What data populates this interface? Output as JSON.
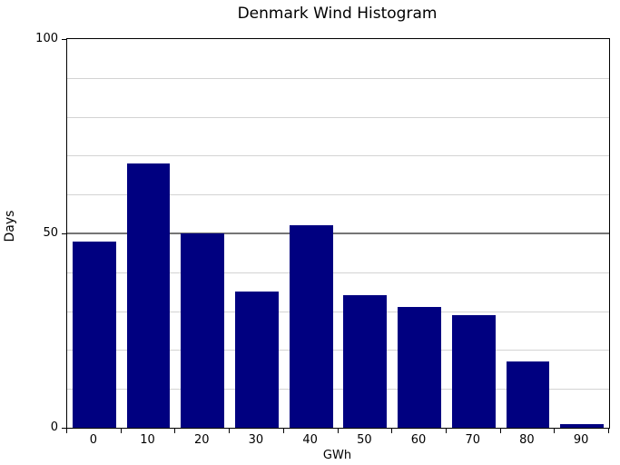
{
  "chart_data": {
    "type": "bar",
    "title": "Denmark Wind Histogram",
    "xlabel": "GWh",
    "ylabel": "Days",
    "categories": [
      "0",
      "10",
      "20",
      "30",
      "40",
      "50",
      "60",
      "70",
      "80",
      "90"
    ],
    "values": [
      48,
      68,
      50,
      35,
      52,
      34,
      31,
      29,
      17,
      1
    ],
    "ylim": [
      0,
      100
    ],
    "yticks": [
      0,
      50,
      100
    ],
    "minor_grid_interval": 10,
    "bar_fill_fraction": 0.8,
    "grid": true,
    "legend_position": "none",
    "colors": {
      "bar": "#000080",
      "minor_grid": "#d3d3d3",
      "major_grid": "#757575",
      "axis": "#000000",
      "text": "#000000",
      "background": "#ffffff"
    }
  }
}
